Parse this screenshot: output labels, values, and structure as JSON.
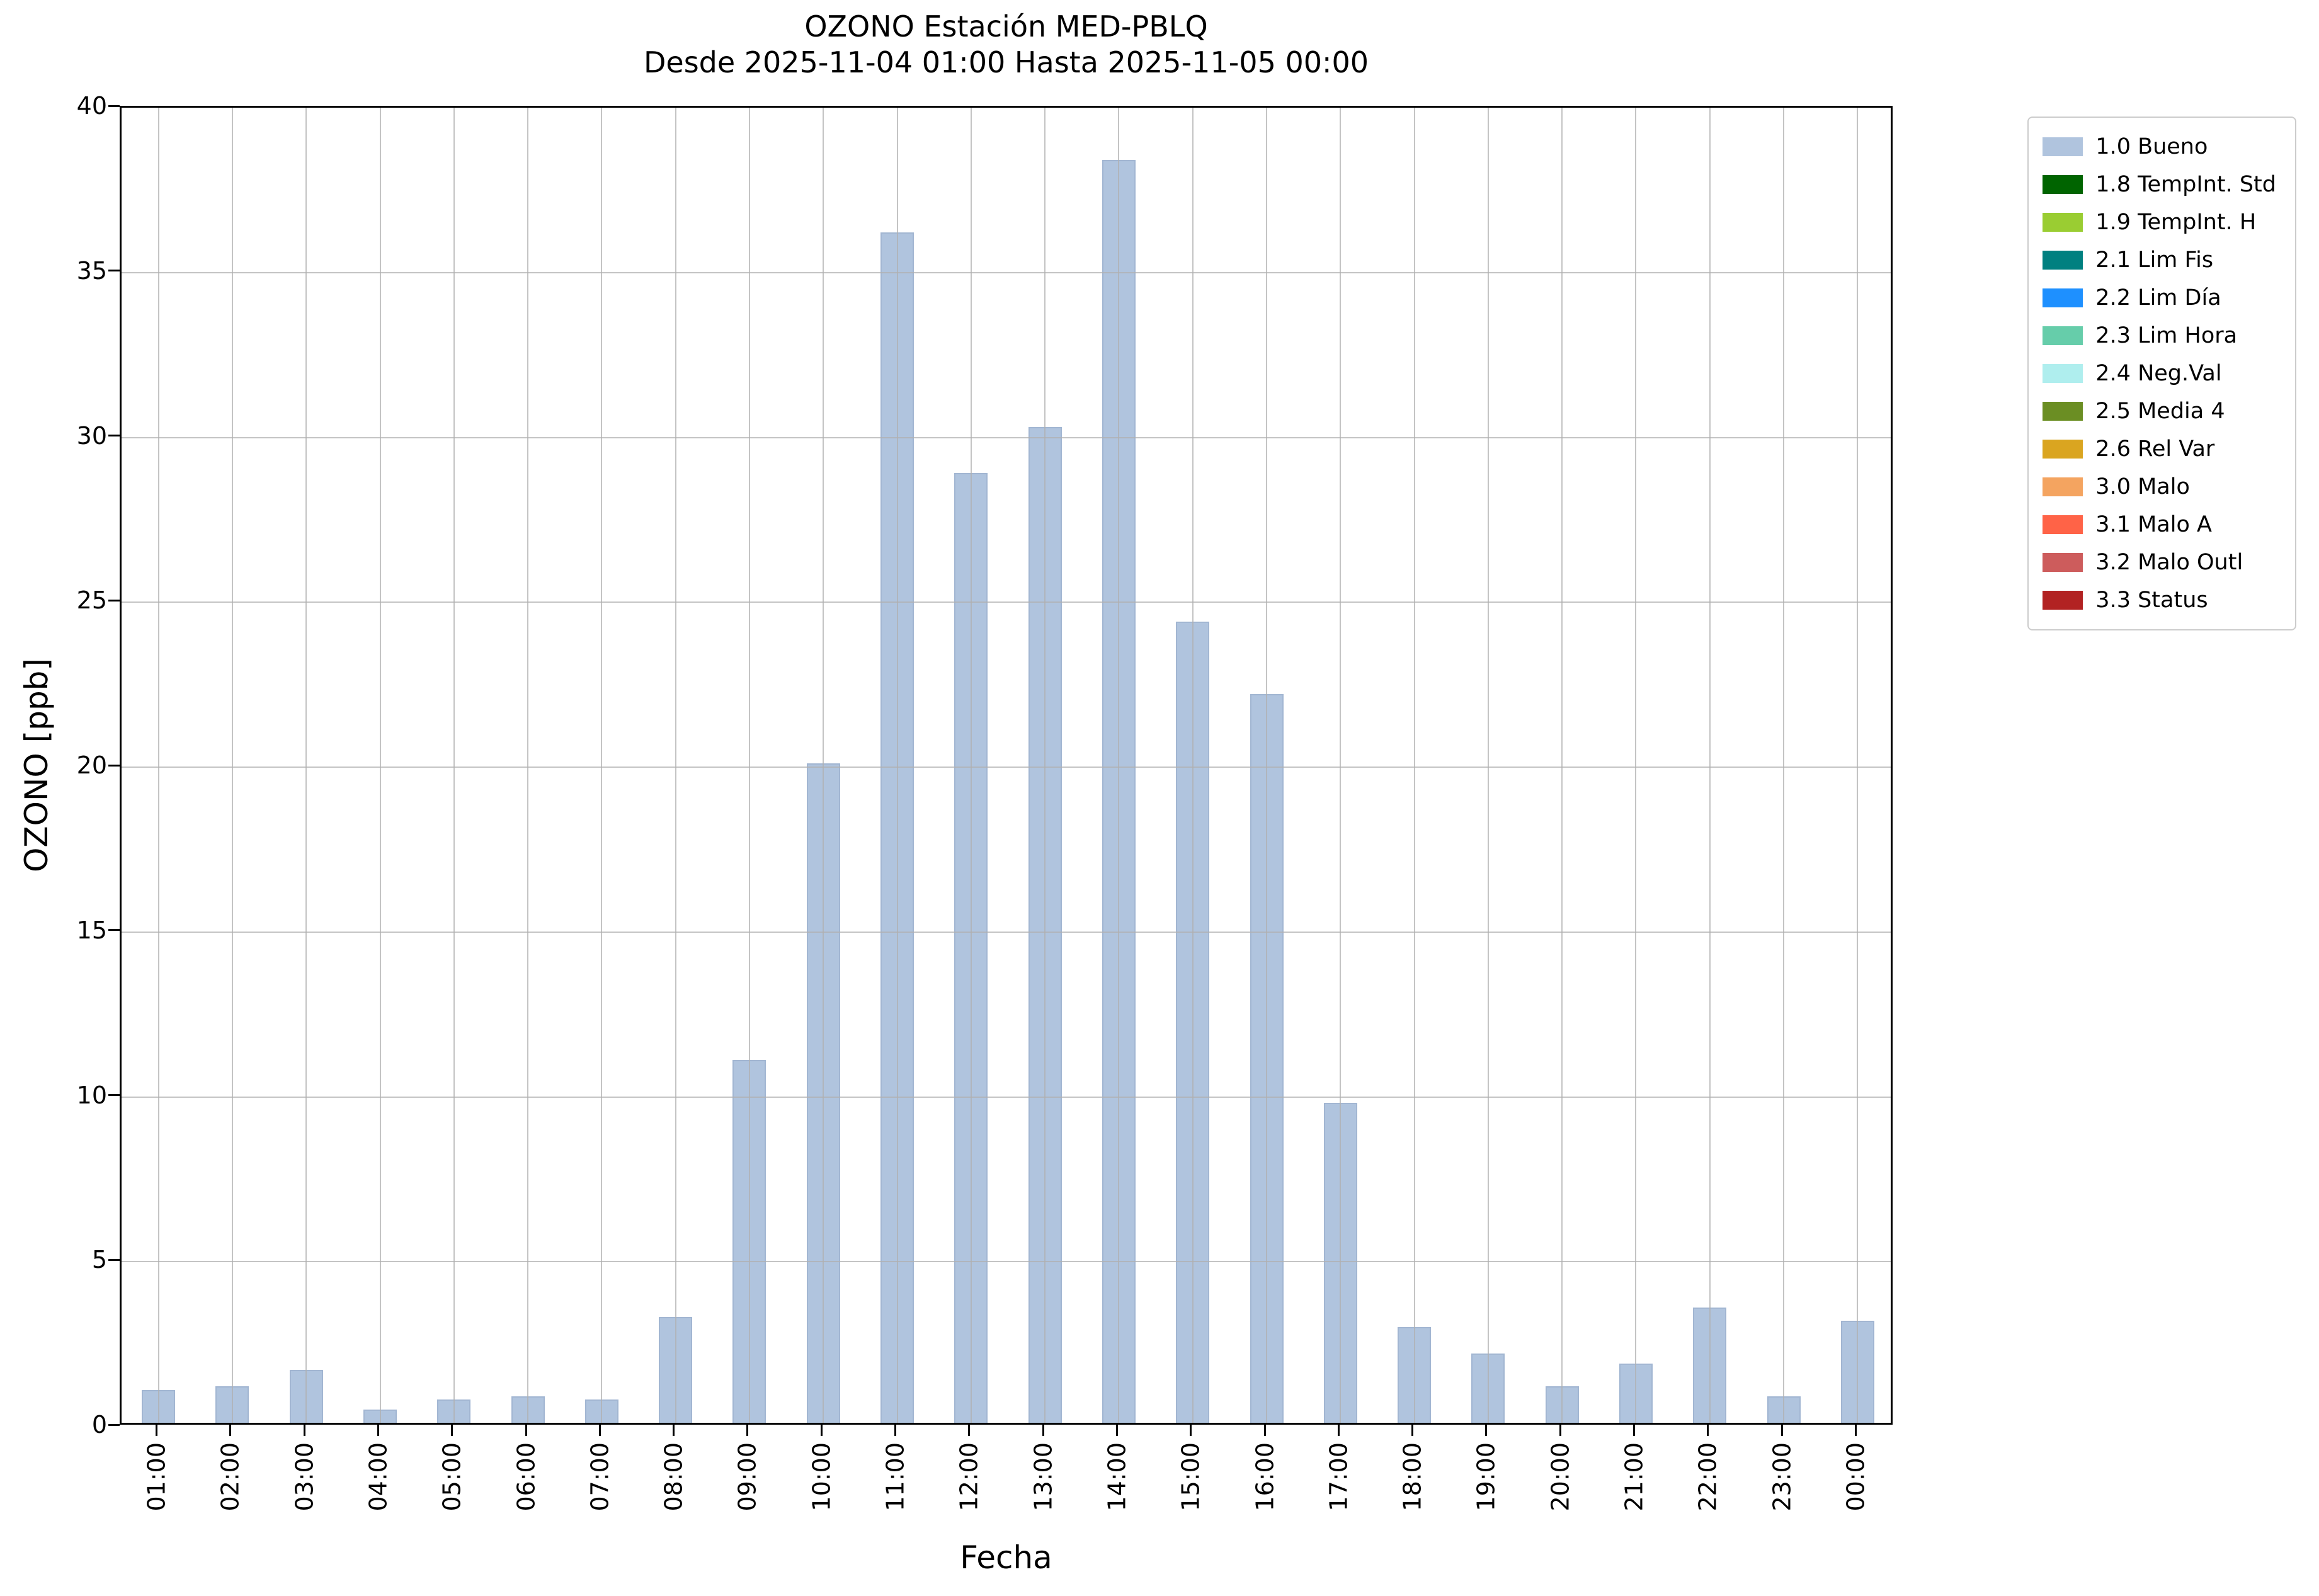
{
  "chart_data": {
    "type": "bar",
    "title": "OZONO Estación MED-PBLQ",
    "subtitle": "Desde 2025-11-04 01:00 Hasta 2025-11-05 00:00",
    "xlabel": "Fecha",
    "ylabel": "OZONO [ppb]",
    "ylim": [
      0,
      40
    ],
    "yticks": [
      0,
      5,
      10,
      15,
      20,
      25,
      30,
      35,
      40
    ],
    "grid": true,
    "grid_color": "#b0b0b0",
    "bar_color": "#b0c4de",
    "bar_edge_color": "#a2b6d2",
    "legend_position": "outside-right",
    "categories": [
      "01:00",
      "02:00",
      "03:00",
      "04:00",
      "05:00",
      "06:00",
      "07:00",
      "08:00",
      "09:00",
      "10:00",
      "11:00",
      "12:00",
      "13:00",
      "14:00",
      "15:00",
      "16:00",
      "17:00",
      "18:00",
      "19:00",
      "20:00",
      "21:00",
      "22:00",
      "23:00",
      "00:00"
    ],
    "values": [
      1.0,
      1.1,
      1.6,
      0.4,
      0.7,
      0.8,
      0.7,
      3.2,
      11.0,
      20.0,
      36.1,
      28.8,
      30.2,
      38.3,
      24.3,
      22.1,
      9.7,
      2.9,
      2.1,
      1.1,
      1.8,
      3.5,
      0.8,
      3.1
    ],
    "series_name": "1.0 Bueno",
    "legend": [
      {
        "label": "1.0 Bueno",
        "color": "#b0c4de"
      },
      {
        "label": "1.8 TempInt. Std",
        "color": "#006400"
      },
      {
        "label": "1.9 TempInt. H",
        "color": "#9acd32"
      },
      {
        "label": "2.1 Lim Fis",
        "color": "#008080"
      },
      {
        "label": "2.2 Lim Día",
        "color": "#1e90ff"
      },
      {
        "label": "2.3 Lim Hora",
        "color": "#66cdaa"
      },
      {
        "label": "2.4 Neg.Val",
        "color": "#afeeee"
      },
      {
        "label": "2.5 Media 4",
        "color": "#6b8e23"
      },
      {
        "label": "2.6 Rel Var",
        "color": "#daa520"
      },
      {
        "label": "3.0 Malo",
        "color": "#f4a460"
      },
      {
        "label": "3.1 Malo A",
        "color": "#ff6347"
      },
      {
        "label": "3.2 Malo Outl",
        "color": "#cd5c5c"
      },
      {
        "label": "3.3 Status",
        "color": "#b22222"
      }
    ]
  }
}
